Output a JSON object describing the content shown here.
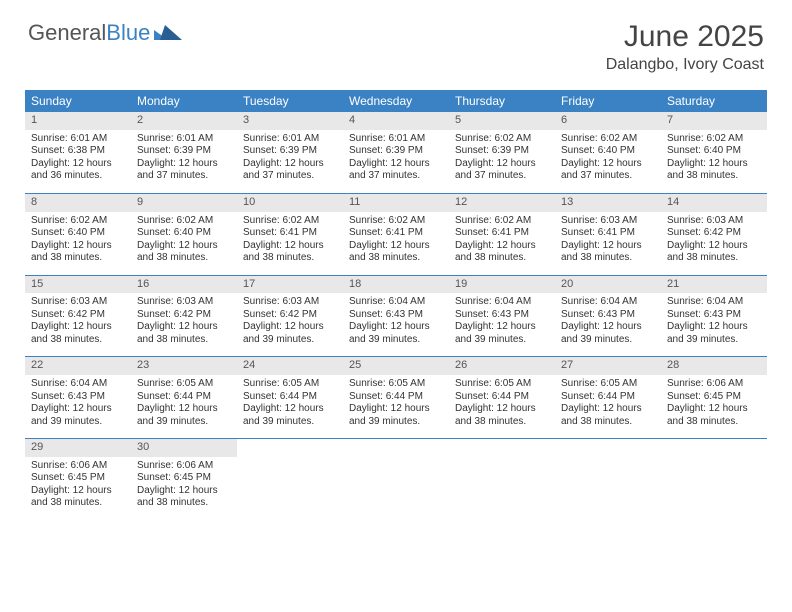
{
  "brand": {
    "part1": "General",
    "part2": "Blue"
  },
  "title": "June 2025",
  "location": "Dalangbo, Ivory Coast",
  "colors": {
    "header_bg": "#3b82c4",
    "header_text": "#ffffff",
    "daynum_bg": "#e8e8e8",
    "border": "#3b82c4",
    "text": "#333333",
    "title_text": "#444444",
    "page_bg": "#ffffff"
  },
  "day_labels": [
    "Sunday",
    "Monday",
    "Tuesday",
    "Wednesday",
    "Thursday",
    "Friday",
    "Saturday"
  ],
  "days": [
    {
      "n": 1,
      "sunrise": "6:01 AM",
      "sunset": "6:38 PM",
      "daylight": "12 hours and 36 minutes."
    },
    {
      "n": 2,
      "sunrise": "6:01 AM",
      "sunset": "6:39 PM",
      "daylight": "12 hours and 37 minutes."
    },
    {
      "n": 3,
      "sunrise": "6:01 AM",
      "sunset": "6:39 PM",
      "daylight": "12 hours and 37 minutes."
    },
    {
      "n": 4,
      "sunrise": "6:01 AM",
      "sunset": "6:39 PM",
      "daylight": "12 hours and 37 minutes."
    },
    {
      "n": 5,
      "sunrise": "6:02 AM",
      "sunset": "6:39 PM",
      "daylight": "12 hours and 37 minutes."
    },
    {
      "n": 6,
      "sunrise": "6:02 AM",
      "sunset": "6:40 PM",
      "daylight": "12 hours and 37 minutes."
    },
    {
      "n": 7,
      "sunrise": "6:02 AM",
      "sunset": "6:40 PM",
      "daylight": "12 hours and 38 minutes."
    },
    {
      "n": 8,
      "sunrise": "6:02 AM",
      "sunset": "6:40 PM",
      "daylight": "12 hours and 38 minutes."
    },
    {
      "n": 9,
      "sunrise": "6:02 AM",
      "sunset": "6:40 PM",
      "daylight": "12 hours and 38 minutes."
    },
    {
      "n": 10,
      "sunrise": "6:02 AM",
      "sunset": "6:41 PM",
      "daylight": "12 hours and 38 minutes."
    },
    {
      "n": 11,
      "sunrise": "6:02 AM",
      "sunset": "6:41 PM",
      "daylight": "12 hours and 38 minutes."
    },
    {
      "n": 12,
      "sunrise": "6:02 AM",
      "sunset": "6:41 PM",
      "daylight": "12 hours and 38 minutes."
    },
    {
      "n": 13,
      "sunrise": "6:03 AM",
      "sunset": "6:41 PM",
      "daylight": "12 hours and 38 minutes."
    },
    {
      "n": 14,
      "sunrise": "6:03 AM",
      "sunset": "6:42 PM",
      "daylight": "12 hours and 38 minutes."
    },
    {
      "n": 15,
      "sunrise": "6:03 AM",
      "sunset": "6:42 PM",
      "daylight": "12 hours and 38 minutes."
    },
    {
      "n": 16,
      "sunrise": "6:03 AM",
      "sunset": "6:42 PM",
      "daylight": "12 hours and 38 minutes."
    },
    {
      "n": 17,
      "sunrise": "6:03 AM",
      "sunset": "6:42 PM",
      "daylight": "12 hours and 39 minutes."
    },
    {
      "n": 18,
      "sunrise": "6:04 AM",
      "sunset": "6:43 PM",
      "daylight": "12 hours and 39 minutes."
    },
    {
      "n": 19,
      "sunrise": "6:04 AM",
      "sunset": "6:43 PM",
      "daylight": "12 hours and 39 minutes."
    },
    {
      "n": 20,
      "sunrise": "6:04 AM",
      "sunset": "6:43 PM",
      "daylight": "12 hours and 39 minutes."
    },
    {
      "n": 21,
      "sunrise": "6:04 AM",
      "sunset": "6:43 PM",
      "daylight": "12 hours and 39 minutes."
    },
    {
      "n": 22,
      "sunrise": "6:04 AM",
      "sunset": "6:43 PM",
      "daylight": "12 hours and 39 minutes."
    },
    {
      "n": 23,
      "sunrise": "6:05 AM",
      "sunset": "6:44 PM",
      "daylight": "12 hours and 39 minutes."
    },
    {
      "n": 24,
      "sunrise": "6:05 AM",
      "sunset": "6:44 PM",
      "daylight": "12 hours and 39 minutes."
    },
    {
      "n": 25,
      "sunrise": "6:05 AM",
      "sunset": "6:44 PM",
      "daylight": "12 hours and 39 minutes."
    },
    {
      "n": 26,
      "sunrise": "6:05 AM",
      "sunset": "6:44 PM",
      "daylight": "12 hours and 38 minutes."
    },
    {
      "n": 27,
      "sunrise": "6:05 AM",
      "sunset": "6:44 PM",
      "daylight": "12 hours and 38 minutes."
    },
    {
      "n": 28,
      "sunrise": "6:06 AM",
      "sunset": "6:45 PM",
      "daylight": "12 hours and 38 minutes."
    },
    {
      "n": 29,
      "sunrise": "6:06 AM",
      "sunset": "6:45 PM",
      "daylight": "12 hours and 38 minutes."
    },
    {
      "n": 30,
      "sunrise": "6:06 AM",
      "sunset": "6:45 PM",
      "daylight": "12 hours and 38 minutes."
    }
  ],
  "labels": {
    "sunrise": "Sunrise:",
    "sunset": "Sunset:",
    "daylight": "Daylight:"
  },
  "layout": {
    "first_day_column": 0,
    "num_days": 30,
    "columns": 7
  }
}
